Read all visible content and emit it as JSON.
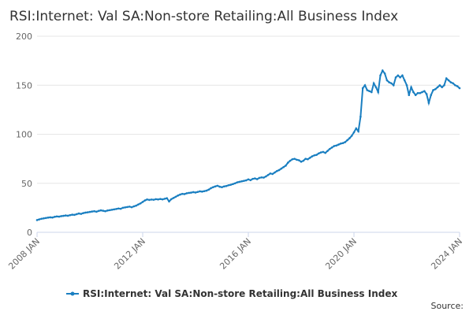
{
  "chart_data": {
    "type": "line",
    "title": "RSI:Internet: Val SA:Non-store Retailing:All Business Index",
    "x": [
      "2008 JAN",
      "2008 FEB",
      "2008 MAR",
      "2008 APR",
      "2008 MAY",
      "2008 JUN",
      "2008 JUL",
      "2008 AUG",
      "2008 SEP",
      "2008 OCT",
      "2008 NOV",
      "2008 DEC",
      "2009 JAN",
      "2009 FEB",
      "2009 MAR",
      "2009 APR",
      "2009 MAY",
      "2009 JUN",
      "2009 JUL",
      "2009 AUG",
      "2009 SEP",
      "2009 OCT",
      "2009 NOV",
      "2009 DEC",
      "2010 JAN",
      "2010 FEB",
      "2010 MAR",
      "2010 APR",
      "2010 MAY",
      "2010 JUN",
      "2010 JUL",
      "2010 AUG",
      "2010 SEP",
      "2010 OCT",
      "2010 NOV",
      "2010 DEC",
      "2011 JAN",
      "2011 FEB",
      "2011 MAR",
      "2011 APR",
      "2011 MAY",
      "2011 JUN",
      "2011 JUL",
      "2011 AUG",
      "2011 SEP",
      "2011 OCT",
      "2011 NOV",
      "2011 DEC",
      "2012 JAN",
      "2012 FEB",
      "2012 MAR",
      "2012 APR",
      "2012 MAY",
      "2012 JUN",
      "2012 JUL",
      "2012 AUG",
      "2012 SEP",
      "2012 OCT",
      "2012 NOV",
      "2012 DEC",
      "2013 JAN",
      "2013 FEB",
      "2013 MAR",
      "2013 APR",
      "2013 MAY",
      "2013 JUN",
      "2013 JUL",
      "2013 AUG",
      "2013 SEP",
      "2013 OCT",
      "2013 NOV",
      "2013 DEC",
      "2014 JAN",
      "2014 FEB",
      "2014 MAR",
      "2014 APR",
      "2014 MAY",
      "2014 JUN",
      "2014 JUL",
      "2014 AUG",
      "2014 SEP",
      "2014 OCT",
      "2014 NOV",
      "2014 DEC",
      "2015 JAN",
      "2015 FEB",
      "2015 MAR",
      "2015 APR",
      "2015 MAY",
      "2015 JUN",
      "2015 JUL",
      "2015 AUG",
      "2015 SEP",
      "2015 OCT",
      "2015 NOV",
      "2015 DEC",
      "2016 JAN",
      "2016 FEB",
      "2016 MAR",
      "2016 APR",
      "2016 MAY",
      "2016 JUN",
      "2016 JUL",
      "2016 AUG",
      "2016 SEP",
      "2016 OCT",
      "2016 NOV",
      "2016 DEC",
      "2017 JAN",
      "2017 FEB",
      "2017 MAR",
      "2017 APR",
      "2017 MAY",
      "2017 JUN",
      "2017 JUL",
      "2017 AUG",
      "2017 SEP",
      "2017 OCT",
      "2017 NOV",
      "2017 DEC",
      "2018 JAN",
      "2018 FEB",
      "2018 MAR",
      "2018 APR",
      "2018 MAY",
      "2018 JUN",
      "2018 JUL",
      "2018 AUG",
      "2018 SEP",
      "2018 OCT",
      "2018 NOV",
      "2018 DEC",
      "2019 JAN",
      "2019 FEB",
      "2019 MAR",
      "2019 APR",
      "2019 MAY",
      "2019 JUN",
      "2019 JUL",
      "2019 AUG",
      "2019 SEP",
      "2019 OCT",
      "2019 NOV",
      "2019 DEC",
      "2020 JAN",
      "2020 FEB",
      "2020 MAR",
      "2020 APR",
      "2020 MAY",
      "2020 JUN",
      "2020 JUL",
      "2020 AUG",
      "2020 SEP",
      "2020 OCT",
      "2020 NOV",
      "2020 DEC",
      "2021 JAN",
      "2021 FEB",
      "2021 MAR",
      "2021 APR",
      "2021 MAY",
      "2021 JUN",
      "2021 JUL",
      "2021 AUG",
      "2021 SEP",
      "2021 OCT",
      "2021 NOV",
      "2021 DEC",
      "2022 JAN",
      "2022 FEB",
      "2022 MAR",
      "2022 APR",
      "2022 MAY",
      "2022 JUN",
      "2022 JUL",
      "2022 AUG",
      "2022 SEP",
      "2022 OCT",
      "2022 NOV",
      "2022 DEC",
      "2023 JAN",
      "2023 FEB",
      "2023 MAR",
      "2023 APR",
      "2023 MAY",
      "2023 JUN",
      "2023 JUL",
      "2023 AUG",
      "2023 SEP",
      "2023 OCT",
      "2023 NOV",
      "2023 DEC",
      "2024 JAN"
    ],
    "series": [
      {
        "name": "RSI:Internet: Val SA:Non-store Retailing:All Business Index",
        "color": "#1a7fc1",
        "values": [
          12.5,
          13.2,
          13.8,
          14.2,
          14.6,
          15,
          15.3,
          15.1,
          15.8,
          16.2,
          16,
          16.5,
          16.8,
          17.2,
          16.9,
          17.5,
          18,
          17.8,
          18.5,
          19.2,
          18.8,
          19.6,
          20.1,
          20.4,
          20.8,
          21.2,
          21.5,
          21,
          21.8,
          22.4,
          22,
          21.5,
          22.2,
          22.6,
          23,
          23.4,
          23.8,
          24.3,
          24,
          25,
          25.4,
          25.8,
          26.2,
          25.6,
          26.5,
          27.2,
          28.4,
          29.5,
          31,
          32.5,
          33.5,
          33,
          33.4,
          33.2,
          33.8,
          33.5,
          34,
          33.6,
          34.2,
          34.8,
          31.5,
          33.8,
          35,
          36.2,
          37.5,
          38.5,
          39.2,
          39,
          39.8,
          40.2,
          40.5,
          41,
          40.6,
          41.2,
          41.8,
          41.5,
          42,
          42.5,
          43.5,
          45,
          46,
          46.8,
          47.5,
          46.5,
          46,
          46.8,
          47.2,
          48,
          48.5,
          49.2,
          50,
          51,
          51.5,
          52,
          52.5,
          53,
          54,
          53.2,
          54.5,
          55,
          54.2,
          55.5,
          56,
          55.8,
          57,
          58.5,
          60,
          59.5,
          61,
          62.5,
          63.5,
          65,
          66.5,
          68,
          71,
          73,
          74.5,
          75,
          74,
          73.5,
          72,
          73,
          75,
          74.5,
          76,
          77.5,
          78.5,
          79,
          80.5,
          81.5,
          82,
          81,
          83,
          85,
          86.5,
          88,
          88.5,
          89.5,
          90.5,
          91,
          92,
          94,
          96,
          98.5,
          102,
          106,
          103,
          118,
          147,
          150,
          145,
          144,
          143,
          152,
          148,
          143,
          160,
          165,
          162,
          155,
          153,
          152,
          150,
          158,
          160,
          158,
          160,
          155,
          150,
          140,
          148,
          143,
          140,
          142,
          142,
          143,
          144,
          141,
          132,
          140,
          145,
          146,
          148,
          150,
          148,
          150,
          157,
          155,
          153,
          152,
          150,
          149,
          147
        ]
      }
    ],
    "ylim": [
      0,
      200
    ],
    "yticks": [
      0,
      50,
      100,
      150,
      200
    ],
    "grid": true,
    "legend": "bottom",
    "source": "Source:"
  }
}
